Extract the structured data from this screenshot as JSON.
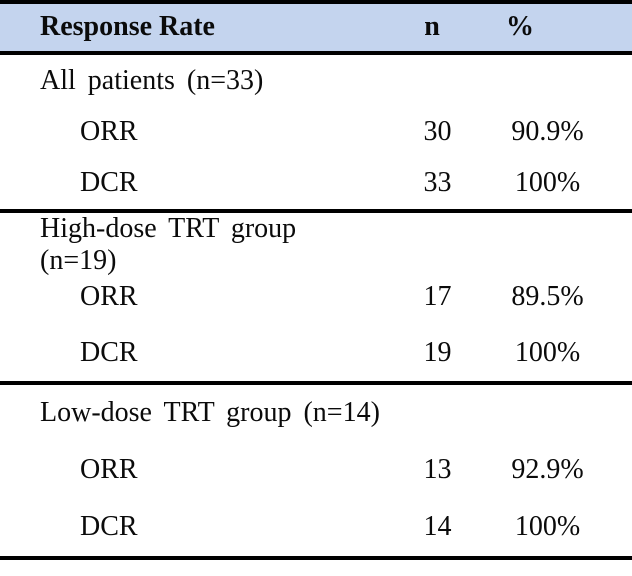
{
  "table": {
    "header": {
      "response_rate": "Response Rate",
      "n": "n",
      "pct": "%"
    },
    "sections": [
      {
        "label": "All patients (n=33)",
        "rows": [
          {
            "name": "ORR",
            "n": "30",
            "pct": "90.9%"
          },
          {
            "name": "DCR",
            "n": "33",
            "pct": "100%"
          }
        ]
      },
      {
        "label": "High-dose TRT group (n=19)",
        "rows": [
          {
            "name": "ORR",
            "n": "17",
            "pct": "89.5%"
          },
          {
            "name": "DCR",
            "n": "19",
            "pct": "100%"
          }
        ]
      },
      {
        "label": "Low-dose TRT group (n=14)",
        "rows": [
          {
            "name": "ORR",
            "n": "13",
            "pct": "92.9%"
          },
          {
            "name": "DCR",
            "n": "14",
            "pct": "100%"
          }
        ]
      }
    ]
  },
  "colors": {
    "header_bg": "#c4d4ee",
    "rule": "#000000"
  }
}
